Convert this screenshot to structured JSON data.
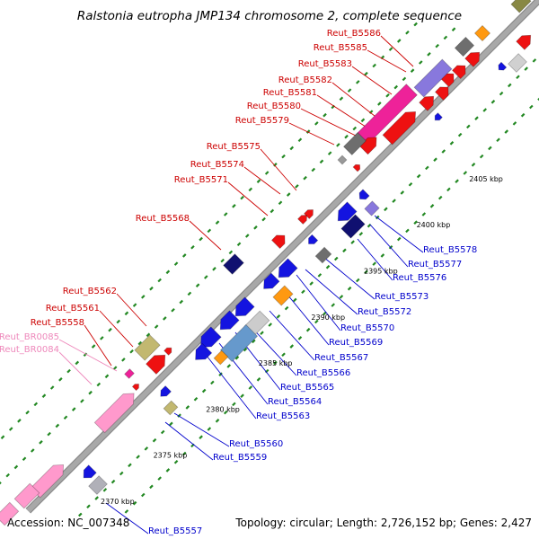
{
  "title": "Ralstonia eutropha JMP134 chromosome 2, complete sequence",
  "footer": {
    "accession": "Accession: NC_007348",
    "summary": "Topology: circular; Length: 2,726,152 bp; Genes: 2,427"
  },
  "colors": {
    "forward_label": "#cc0000",
    "reverse_label": "#0000cc",
    "rna_label": "#ee88bb",
    "backbone": "#a8a8a8",
    "tick": "#228822"
  },
  "kbp_ticks": [
    {
      "kbp": 2370,
      "label": "2370 kbp"
    },
    {
      "kbp": 2375,
      "label": "2375 kbp"
    },
    {
      "kbp": 2380,
      "label": "2380 kbp"
    },
    {
      "kbp": 2385,
      "label": "2385 kbp"
    },
    {
      "kbp": 2390,
      "label": "2390 kbp"
    },
    {
      "kbp": 2395,
      "label": "2395 kbp"
    },
    {
      "kbp": 2400,
      "label": "2400 kbp"
    },
    {
      "kbp": 2405,
      "label": "2405 kbp"
    }
  ],
  "forward_labels": [
    "Reut_B5586",
    "Reut_B5585",
    "Reut_B5583",
    "Reut_B5582",
    "Reut_B5581",
    "Reut_B5580",
    "Reut_B5579",
    "Reut_B5575",
    "Reut_B5574",
    "Reut_B5571",
    "Reut_B5568",
    "Reut_B5562",
    "Reut_B5561",
    "Reut_B5558"
  ],
  "rna_labels": [
    "Reut_BR0085",
    "Reut_BR0084"
  ],
  "reverse_labels": [
    "Reut_B5578",
    "Reut_B5577",
    "Reut_B5576",
    "Reut_B5573",
    "Reut_B5572",
    "Reut_B5570",
    "Reut_B5569",
    "Reut_B5567",
    "Reut_B5566",
    "Reut_B5565",
    "Reut_B5564",
    "Reut_B5563",
    "Reut_B5560",
    "Reut_B5559",
    "Reut_B5557"
  ]
}
